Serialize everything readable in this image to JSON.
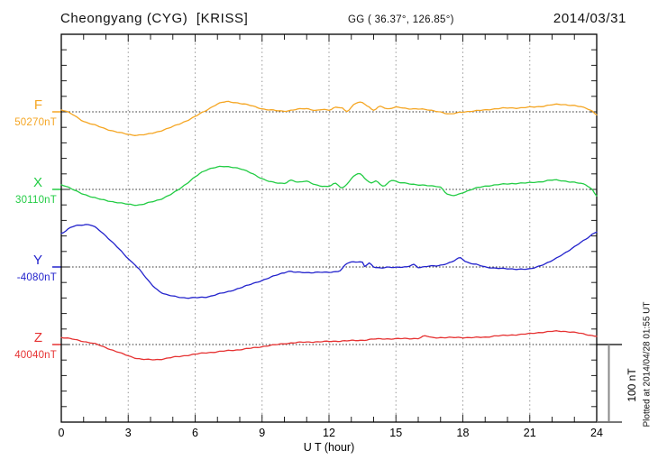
{
  "header": {
    "station": "Cheongyang (CYG)  [KRISS]",
    "coords": "GG ( 36.37°, 126.85°)",
    "date": "2014/03/31"
  },
  "footer": {
    "plotted_at": "Plotted at 2014/04/28 01:55 UT"
  },
  "scale_bar": {
    "label": "100 nT",
    "nT_per_division": 100
  },
  "chart_data": {
    "type": "line",
    "title": "Cheongyang (CYG) [KRISS] magnetogram, 2014/03/31",
    "xlabel": "U T (hour)",
    "x_range": [
      0,
      24
    ],
    "x_major_ticks": [
      0,
      3,
      6,
      9,
      12,
      15,
      18,
      21,
      24
    ],
    "x_minor_step_hours": 1,
    "y_minor_tick_nT": 20,
    "y_division_nT": 100,
    "grid": "dotted vertical lines every 3 h; dotted horizontal reference line per trace",
    "legend_position": "left margin, one label per trace at its reference line",
    "series": [
      {
        "name": "F",
        "ref_value": "50270nT",
        "color": "#f5a623",
        "points": [
          [
            0,
            2.5
          ],
          [
            0.4,
            -2
          ],
          [
            1,
            -12
          ],
          [
            1.5,
            -17
          ],
          [
            2,
            -22
          ],
          [
            2.5,
            -26
          ],
          [
            3,
            -29
          ],
          [
            3.3,
            -30
          ],
          [
            3.7,
            -29.5
          ],
          [
            4,
            -28
          ],
          [
            4.5,
            -24
          ],
          [
            5,
            -19
          ],
          [
            5.5,
            -13
          ],
          [
            6,
            -6
          ],
          [
            6.5,
            2
          ],
          [
            7,
            10
          ],
          [
            7.4,
            13
          ],
          [
            7.8,
            12
          ],
          [
            8,
            11
          ],
          [
            8.5,
            8
          ],
          [
            9,
            4
          ],
          [
            9.5,
            2
          ],
          [
            10,
            1
          ],
          [
            10.5,
            3
          ],
          [
            11,
            4
          ],
          [
            11.4,
            2
          ],
          [
            11.7,
            3
          ],
          [
            12,
            2
          ],
          [
            12.3,
            6
          ],
          [
            12.6,
            5
          ],
          [
            12.8,
            0.5
          ],
          [
            13.2,
            11
          ],
          [
            13.5,
            12
          ],
          [
            13.8,
            6
          ],
          [
            14,
            2
          ],
          [
            14.3,
            7
          ],
          [
            14.6,
            4
          ],
          [
            15,
            6
          ],
          [
            15.5,
            4
          ],
          [
            16,
            4
          ],
          [
            16.5,
            2
          ],
          [
            17,
            0
          ],
          [
            17.4,
            -3
          ],
          [
            17.8,
            -1
          ],
          [
            18,
            0
          ],
          [
            18.5,
            1
          ],
          [
            19,
            2.5
          ],
          [
            19.5,
            4
          ],
          [
            20,
            5
          ],
          [
            20.5,
            5
          ],
          [
            21,
            6
          ],
          [
            21.5,
            7
          ],
          [
            22,
            9
          ],
          [
            22.4,
            9.5
          ],
          [
            23,
            8
          ],
          [
            23.5,
            5
          ],
          [
            23.8,
            1
          ],
          [
            24,
            -3.5
          ]
        ]
      },
      {
        "name": "X",
        "ref_value": "30110nT",
        "color": "#22cc44",
        "points": [
          [
            0,
            6
          ],
          [
            0.5,
            0
          ],
          [
            1,
            -6
          ],
          [
            1.5,
            -11
          ],
          [
            2,
            -14
          ],
          [
            2.5,
            -17
          ],
          [
            3,
            -19
          ],
          [
            3.5,
            -20
          ],
          [
            4,
            -16.5
          ],
          [
            4.5,
            -12
          ],
          [
            5,
            -5
          ],
          [
            5.5,
            5
          ],
          [
            6,
            16
          ],
          [
            6.5,
            25
          ],
          [
            7,
            29
          ],
          [
            7.5,
            29
          ],
          [
            8,
            27
          ],
          [
            8.5,
            21
          ],
          [
            9,
            14
          ],
          [
            9.5,
            9
          ],
          [
            10,
            8
          ],
          [
            10.3,
            12
          ],
          [
            10.6,
            9
          ],
          [
            11,
            10.5
          ],
          [
            11.4,
            6
          ],
          [
            11.8,
            3.5
          ],
          [
            12,
            4
          ],
          [
            12.3,
            8
          ],
          [
            12.6,
            2
          ],
          [
            12.9,
            10
          ],
          [
            13.2,
            19
          ],
          [
            13.4,
            20
          ],
          [
            13.7,
            12
          ],
          [
            13.9,
            8
          ],
          [
            14.1,
            11
          ],
          [
            14.3,
            6
          ],
          [
            14.5,
            5
          ],
          [
            14.8,
            12
          ],
          [
            15.1,
            9
          ],
          [
            15.4,
            8
          ],
          [
            16,
            6
          ],
          [
            16.5,
            4.5
          ],
          [
            17,
            3
          ],
          [
            17.3,
            -6
          ],
          [
            17.6,
            -8
          ],
          [
            18,
            -4
          ],
          [
            18.5,
            1
          ],
          [
            19,
            4
          ],
          [
            19.5,
            6
          ],
          [
            20,
            7
          ],
          [
            20.5,
            8
          ],
          [
            21,
            8.6
          ],
          [
            21.5,
            10
          ],
          [
            22,
            12
          ],
          [
            22.5,
            11
          ],
          [
            23,
            9
          ],
          [
            23.5,
            6
          ],
          [
            23.8,
            0
          ],
          [
            24,
            -8
          ]
        ]
      },
      {
        "name": "Y",
        "ref_value": "-4080nT",
        "color": "#2222cc",
        "points": [
          [
            0,
            43.5
          ],
          [
            0.5,
            51.8
          ],
          [
            1,
            54.5
          ],
          [
            1.4,
            53
          ],
          [
            2,
            40
          ],
          [
            2.5,
            26
          ],
          [
            3,
            10.6
          ],
          [
            3.4,
            0
          ],
          [
            4,
            -21
          ],
          [
            4.5,
            -33
          ],
          [
            5,
            -37.6
          ],
          [
            5.5,
            -39.6
          ],
          [
            6,
            -39.6
          ],
          [
            6.5,
            -38.8
          ],
          [
            7,
            -35
          ],
          [
            7.5,
            -31.8
          ],
          [
            8,
            -27
          ],
          [
            8.5,
            -22.4
          ],
          [
            9,
            -17.3
          ],
          [
            9.5,
            -12.1
          ],
          [
            10,
            -7.4
          ],
          [
            10.2,
            -5.5
          ],
          [
            10.5,
            -6.7
          ],
          [
            11,
            -7.4
          ],
          [
            11.5,
            -6.7
          ],
          [
            12,
            -7
          ],
          [
            12.5,
            -4.4
          ],
          [
            12.8,
            4.4
          ],
          [
            13.1,
            6.2
          ],
          [
            13.5,
            6.2
          ],
          [
            13.6,
            1.2
          ],
          [
            13.8,
            5
          ],
          [
            14,
            0
          ],
          [
            14.3,
            -1.5
          ],
          [
            14.6,
            0
          ],
          [
            15,
            -0.5
          ],
          [
            15.5,
            0
          ],
          [
            15.8,
            3.5
          ],
          [
            16,
            -0.5
          ],
          [
            16.5,
            1
          ],
          [
            17,
            2.4
          ],
          [
            17.5,
            6.2
          ],
          [
            17.9,
            12
          ],
          [
            18.1,
            7.4
          ],
          [
            18.4,
            4.4
          ],
          [
            18.7,
            2.4
          ],
          [
            19,
            0
          ],
          [
            19.5,
            -1.5
          ],
          [
            20,
            -2.4
          ],
          [
            20.5,
            -2.7
          ],
          [
            21,
            -2.7
          ],
          [
            21.3,
            0
          ],
          [
            21.7,
            4.4
          ],
          [
            22,
            8.2
          ],
          [
            22.5,
            16.8
          ],
          [
            23,
            26
          ],
          [
            23.5,
            35.6
          ],
          [
            24,
            45.5
          ]
        ]
      },
      {
        "name": "Z",
        "ref_value": "40040nT",
        "color": "#e63232",
        "points": [
          [
            0,
            9
          ],
          [
            0.5,
            7
          ],
          [
            1,
            4
          ],
          [
            1.5,
            1
          ],
          [
            2,
            -4
          ],
          [
            2.5,
            -9.4
          ],
          [
            3,
            -14.5
          ],
          [
            3.5,
            -18.4
          ],
          [
            4,
            -19.5
          ],
          [
            4.5,
            -18.8
          ],
          [
            5,
            -16.5
          ],
          [
            5.5,
            -14.5
          ],
          [
            6,
            -12.5
          ],
          [
            6.5,
            -10.6
          ],
          [
            7,
            -9.4
          ],
          [
            7.5,
            -7.8
          ],
          [
            8,
            -6.6
          ],
          [
            8.5,
            -4.7
          ],
          [
            9,
            -2.7
          ],
          [
            9.5,
            -0.7
          ],
          [
            10,
            1.2
          ],
          [
            10.5,
            2.4
          ],
          [
            11,
            3.2
          ],
          [
            11.5,
            3.5
          ],
          [
            12,
            4
          ],
          [
            13,
            5
          ],
          [
            13.5,
            5.5
          ],
          [
            14,
            7
          ],
          [
            15,
            7.5
          ],
          [
            16,
            8
          ],
          [
            16.3,
            11
          ],
          [
            16.6,
            9
          ],
          [
            17,
            9
          ],
          [
            18,
            9
          ],
          [
            19,
            9.4
          ],
          [
            19.4,
            11
          ],
          [
            20,
            11.8
          ],
          [
            20.5,
            13
          ],
          [
            21,
            14
          ],
          [
            21.5,
            15.7
          ],
          [
            22,
            17
          ],
          [
            22.5,
            17
          ],
          [
            23,
            15.7
          ],
          [
            23.5,
            13
          ],
          [
            24,
            11
          ]
        ]
      }
    ]
  }
}
